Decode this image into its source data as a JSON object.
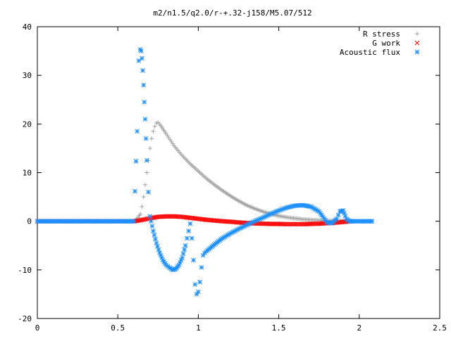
{
  "chart_data": {
    "type": "scatter",
    "title": "m2/n1.5/q2.0/r-+.32-j158/M5.07/512",
    "xlabel": "",
    "ylabel": "",
    "xlim": [
      0,
      2.5
    ],
    "ylim": [
      -20,
      40
    ],
    "x_ticks": [
      "0",
      "0.5",
      "1",
      "1.5",
      "2",
      "2.5"
    ],
    "y_ticks": [
      "-20",
      "-10",
      "0",
      "10",
      "20",
      "30",
      "40"
    ],
    "grid": false,
    "legend_position": "top-right",
    "series": [
      {
        "name": "R stress",
        "marker": "+",
        "color": "#a0a0a0",
        "x": [
          0,
          0.2,
          0.4,
          0.6,
          0.62,
          0.64,
          0.65,
          0.66,
          0.67,
          0.68,
          0.69,
          0.7,
          0.71,
          0.72,
          0.73,
          0.74,
          0.75,
          0.76,
          0.78,
          0.8,
          0.85,
          0.9,
          0.95,
          1.0,
          1.05,
          1.1,
          1.15,
          1.2,
          1.25,
          1.3,
          1.35,
          1.4,
          1.45,
          1.5,
          1.55,
          1.6,
          1.65,
          1.7,
          1.75,
          1.8,
          1.85,
          1.9,
          1.95
        ],
        "y": [
          0,
          0,
          0,
          0,
          0.5,
          1.5,
          3,
          5,
          7.5,
          10,
          12.5,
          15,
          17,
          18.5,
          19.5,
          20.2,
          20.3,
          20,
          19,
          18,
          15.5,
          13.5,
          11.8,
          10.3,
          8.8,
          7.5,
          6.3,
          5.2,
          4.2,
          3.3,
          2.6,
          2,
          1.5,
          1.1,
          0.8,
          0.6,
          0.4,
          0.3,
          0.2,
          0.15,
          0.1,
          0.05,
          0
        ]
      },
      {
        "name": "G work",
        "marker": "x",
        "color": "#ff0000",
        "x": [
          0,
          0.2,
          0.4,
          0.6,
          0.64,
          0.7,
          0.75,
          0.8,
          0.85,
          0.9,
          0.95,
          1.0,
          1.05,
          1.1,
          1.15,
          1.2,
          1.25,
          1.3,
          1.35,
          1.4,
          1.45,
          1.5,
          1.55,
          1.6,
          1.65,
          1.7,
          1.75,
          1.8,
          1.85,
          1.9,
          1.95
        ],
        "y": [
          0,
          0,
          0,
          0,
          0.2,
          0.6,
          0.9,
          1,
          1,
          0.9,
          0.7,
          0.5,
          0.3,
          0.15,
          0,
          -0.1,
          -0.25,
          -0.35,
          -0.45,
          -0.5,
          -0.55,
          -0.55,
          -0.6,
          -0.6,
          -0.6,
          -0.55,
          -0.5,
          -0.4,
          -0.3,
          -0.15,
          0
        ]
      },
      {
        "name": "Acoustic flux",
        "marker": "*",
        "color": "#1e90ff",
        "x": [
          0,
          0.2,
          0.4,
          0.6,
          0.62,
          0.63,
          0.64,
          0.645,
          0.65,
          0.655,
          0.66,
          0.665,
          0.67,
          0.675,
          0.68,
          0.69,
          0.7,
          0.72,
          0.74,
          0.76,
          0.78,
          0.8,
          0.82,
          0.84,
          0.86,
          0.88,
          0.9,
          0.92,
          0.94,
          0.95,
          0.96,
          0.97,
          0.98,
          0.99,
          1.0,
          1.01,
          1.02,
          1.03,
          1.04,
          1.05,
          1.1,
          1.15,
          1.2,
          1.25,
          1.3,
          1.35,
          1.4,
          1.45,
          1.5,
          1.55,
          1.6,
          1.65,
          1.7,
          1.75,
          1.8,
          1.83,
          1.86,
          1.88,
          1.9,
          1.92,
          1.94,
          1.96,
          2.0,
          2.05,
          2.08
        ],
        "y": [
          0,
          0,
          0,
          0,
          18.5,
          33,
          35.3,
          35,
          33.5,
          31,
          28,
          24.5,
          21,
          17,
          12.5,
          6,
          1,
          -2,
          -4.5,
          -6.5,
          -8,
          -9,
          -9.5,
          -10,
          -9.8,
          -9,
          -7.5,
          -5,
          -2,
          -0.5,
          -3.5,
          -8,
          -13,
          -15,
          -14.5,
          -12.5,
          -9.5,
          -7,
          -6.5,
          -6.2,
          -4.8,
          -3.5,
          -2.5,
          -1.6,
          -0.8,
          0,
          0.7,
          1.5,
          2.2,
          2.8,
          3.2,
          3.3,
          3,
          2,
          -0.2,
          -0.4,
          0.5,
          2,
          2.2,
          0.5,
          0,
          0,
          0,
          0,
          0
        ]
      }
    ]
  }
}
